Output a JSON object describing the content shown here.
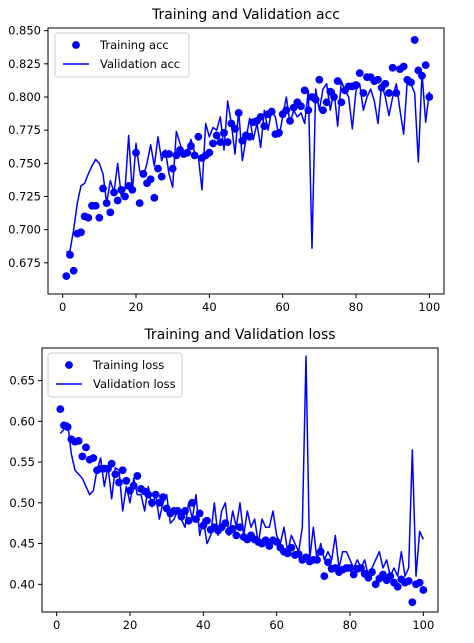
{
  "colors": {
    "series": "#0000ff",
    "frame": "#000000",
    "legend_border": "#cccccc"
  },
  "chart_data": [
    {
      "type": "line",
      "title": "Training and Validation acc",
      "xlabel": "",
      "ylabel": "",
      "xlim": [
        -4,
        104
      ],
      "ylim": [
        0.6515,
        0.852
      ],
      "xticks": [
        0,
        20,
        40,
        60,
        80,
        100
      ],
      "xtick_labels": [
        "0",
        "20",
        "40",
        "60",
        "80",
        "100"
      ],
      "yticks": [
        0.675,
        0.7,
        0.725,
        0.75,
        0.775,
        0.8,
        0.825,
        0.85
      ],
      "ytick_labels": [
        "0.675",
        "0.700",
        "0.725",
        "0.750",
        "0.775",
        "0.800",
        "0.825",
        "0.850"
      ],
      "grid": false,
      "legend_position": "top-left",
      "series": [
        {
          "name": "Training acc",
          "style": "markers",
          "x": [
            1,
            2,
            3,
            4,
            5,
            6,
            7,
            8,
            9,
            10,
            11,
            12,
            13,
            14,
            15,
            16,
            17,
            18,
            19,
            20,
            21,
            22,
            23,
            24,
            25,
            26,
            27,
            28,
            29,
            30,
            31,
            32,
            33,
            34,
            35,
            36,
            37,
            38,
            39,
            40,
            41,
            42,
            43,
            44,
            45,
            46,
            47,
            48,
            49,
            50,
            51,
            52,
            53,
            54,
            55,
            56,
            57,
            58,
            59,
            60,
            61,
            62,
            63,
            64,
            65,
            66,
            67,
            68,
            69,
            70,
            71,
            72,
            73,
            74,
            75,
            76,
            77,
            78,
            79,
            80,
            81,
            82,
            83,
            84,
            85,
            86,
            87,
            88,
            89,
            90,
            91,
            92,
            93,
            94,
            95,
            96,
            97,
            98,
            99,
            100
          ],
          "y": [
            0.665,
            0.681,
            0.669,
            0.697,
            0.698,
            0.71,
            0.709,
            0.718,
            0.718,
            0.709,
            0.731,
            0.72,
            0.713,
            0.728,
            0.722,
            0.73,
            0.725,
            0.733,
            0.73,
            0.758,
            0.72,
            0.742,
            0.735,
            0.738,
            0.724,
            0.746,
            0.74,
            0.757,
            0.757,
            0.746,
            0.756,
            0.76,
            0.757,
            0.758,
            0.763,
            0.756,
            0.77,
            0.754,
            0.756,
            0.758,
            0.765,
            0.771,
            0.766,
            0.773,
            0.766,
            0.78,
            0.776,
            0.788,
            0.767,
            0.771,
            0.77,
            0.781,
            0.782,
            0.785,
            0.778,
            0.787,
            0.789,
            0.772,
            0.773,
            0.787,
            0.79,
            0.782,
            0.792,
            0.796,
            0.793,
            0.805,
            0.79,
            0.8,
            0.798,
            0.813,
            0.79,
            0.796,
            0.804,
            0.8,
            0.812,
            0.796,
            0.805,
            0.808,
            0.808,
            0.809,
            0.818,
            0.803,
            0.815,
            0.815,
            0.812,
            0.813,
            0.807,
            0.81,
            0.803,
            0.822,
            0.803,
            0.821,
            0.823,
            0.813,
            0.811,
            0.843,
            0.82,
            0.816,
            0.824,
            0.8
          ]
        },
        {
          "name": "Validation acc",
          "style": "line",
          "x": [
            1,
            2,
            3,
            4,
            5,
            6,
            7,
            8,
            9,
            10,
            11,
            12,
            13,
            14,
            15,
            16,
            17,
            18,
            19,
            20,
            21,
            22,
            23,
            24,
            25,
            26,
            27,
            28,
            29,
            30,
            31,
            32,
            33,
            34,
            35,
            36,
            37,
            38,
            39,
            40,
            41,
            42,
            43,
            44,
            45,
            46,
            47,
            48,
            49,
            50,
            51,
            52,
            53,
            54,
            55,
            56,
            57,
            58,
            59,
            60,
            61,
            62,
            63,
            64,
            65,
            66,
            67,
            68,
            69,
            70,
            71,
            72,
            73,
            74,
            75,
            76,
            77,
            78,
            79,
            80,
            81,
            82,
            83,
            84,
            85,
            86,
            87,
            88,
            89,
            90,
            91,
            92,
            93,
            94,
            95,
            96,
            97,
            98,
            99,
            100
          ],
          "y": [
            0.683,
            0.684,
            0.7,
            0.72,
            0.733,
            0.735,
            0.742,
            0.748,
            0.753,
            0.75,
            0.742,
            0.72,
            0.737,
            0.728,
            0.75,
            0.725,
            0.73,
            0.771,
            0.728,
            0.765,
            0.744,
            0.74,
            0.75,
            0.764,
            0.748,
            0.77,
            0.752,
            0.76,
            0.742,
            0.732,
            0.774,
            0.765,
            0.756,
            0.76,
            0.768,
            0.758,
            0.755,
            0.73,
            0.78,
            0.77,
            0.777,
            0.775,
            0.785,
            0.76,
            0.797,
            0.78,
            0.757,
            0.79,
            0.752,
            0.768,
            0.784,
            0.768,
            0.78,
            0.762,
            0.79,
            0.775,
            0.79,
            0.785,
            0.77,
            0.785,
            0.8,
            0.78,
            0.79,
            0.785,
            0.788,
            0.78,
            0.805,
            0.686,
            0.806,
            0.79,
            0.806,
            0.81,
            0.79,
            0.805,
            0.778,
            0.812,
            0.805,
            0.8,
            0.776,
            0.805,
            0.81,
            0.79,
            0.8,
            0.806,
            0.797,
            0.78,
            0.81,
            0.8,
            0.786,
            0.8,
            0.81,
            0.79,
            0.772,
            0.813,
            0.81,
            0.803,
            0.751,
            0.818,
            0.781,
            0.804
          ]
        }
      ]
    },
    {
      "type": "line",
      "title": "Training and Validation loss",
      "xlabel": "",
      "ylabel": "",
      "xlim": [
        -4,
        104
      ],
      "ylim": [
        0.366,
        0.69
      ],
      "xticks": [
        0,
        20,
        40,
        60,
        80,
        100
      ],
      "xtick_labels": [
        "0",
        "20",
        "40",
        "60",
        "80",
        "100"
      ],
      "yticks": [
        0.4,
        0.45,
        0.5,
        0.55,
        0.6,
        0.65
      ],
      "ytick_labels": [
        "0.40",
        "0.45",
        "0.50",
        "0.55",
        "0.60",
        "0.65"
      ],
      "grid": false,
      "legend_position": "top-left",
      "series": [
        {
          "name": "Training loss",
          "style": "markers",
          "x": [
            1,
            2,
            3,
            4,
            5,
            6,
            7,
            8,
            9,
            10,
            11,
            12,
            13,
            14,
            15,
            16,
            17,
            18,
            19,
            20,
            21,
            22,
            23,
            24,
            25,
            26,
            27,
            28,
            29,
            30,
            31,
            32,
            33,
            34,
            35,
            36,
            37,
            38,
            39,
            40,
            41,
            42,
            43,
            44,
            45,
            46,
            47,
            48,
            49,
            50,
            51,
            52,
            53,
            54,
            55,
            56,
            57,
            58,
            59,
            60,
            61,
            62,
            63,
            64,
            65,
            66,
            67,
            68,
            69,
            70,
            71,
            72,
            73,
            74,
            75,
            76,
            77,
            78,
            79,
            80,
            81,
            82,
            83,
            84,
            85,
            86,
            87,
            88,
            89,
            90,
            91,
            92,
            93,
            94,
            95,
            96,
            97,
            98,
            99,
            100
          ],
          "y": [
            0.615,
            0.595,
            0.593,
            0.578,
            0.575,
            0.576,
            0.557,
            0.568,
            0.553,
            0.555,
            0.54,
            0.542,
            0.542,
            0.542,
            0.548,
            0.535,
            0.525,
            0.54,
            0.527,
            0.515,
            0.521,
            0.533,
            0.517,
            0.514,
            0.51,
            0.5,
            0.51,
            0.5,
            0.507,
            0.493,
            0.487,
            0.49,
            0.49,
            0.483,
            0.49,
            0.478,
            0.5,
            0.48,
            0.487,
            0.472,
            0.478,
            0.467,
            0.47,
            0.466,
            0.47,
            0.475,
            0.465,
            0.468,
            0.46,
            0.47,
            0.458,
            0.455,
            0.46,
            0.455,
            0.452,
            0.45,
            0.454,
            0.447,
            0.454,
            0.452,
            0.445,
            0.44,
            0.438,
            0.445,
            0.436,
            0.437,
            0.43,
            0.433,
            0.428,
            0.43,
            0.43,
            0.44,
            0.41,
            0.427,
            0.419,
            0.42,
            0.415,
            0.418,
            0.42,
            0.42,
            0.412,
            0.419,
            0.42,
            0.413,
            0.408,
            0.415,
            0.4,
            0.407,
            0.412,
            0.405,
            0.41,
            0.402,
            0.397,
            0.406,
            0.402,
            0.404,
            0.378,
            0.4,
            0.402,
            0.393
          ]
        },
        {
          "name": "Validation loss",
          "style": "line",
          "x": [
            1,
            2,
            3,
            4,
            5,
            6,
            7,
            8,
            9,
            10,
            11,
            12,
            13,
            14,
            15,
            16,
            17,
            18,
            19,
            20,
            21,
            22,
            23,
            24,
            25,
            26,
            27,
            28,
            29,
            30,
            31,
            32,
            33,
            34,
            35,
            36,
            37,
            38,
            39,
            40,
            41,
            42,
            43,
            44,
            45,
            46,
            47,
            48,
            49,
            50,
            51,
            52,
            53,
            54,
            55,
            56,
            57,
            58,
            59,
            60,
            61,
            62,
            63,
            64,
            65,
            66,
            67,
            68,
            69,
            70,
            71,
            72,
            73,
            74,
            75,
            76,
            77,
            78,
            79,
            80,
            81,
            82,
            83,
            84,
            85,
            86,
            87,
            88,
            89,
            90,
            91,
            92,
            93,
            94,
            95,
            96,
            97,
            98,
            99,
            100
          ],
          "y": [
            0.585,
            0.59,
            0.598,
            0.56,
            0.54,
            0.535,
            0.53,
            0.52,
            0.51,
            0.515,
            0.54,
            0.555,
            0.52,
            0.545,
            0.505,
            0.543,
            0.54,
            0.49,
            0.52,
            0.5,
            0.53,
            0.51,
            0.51,
            0.49,
            0.52,
            0.495,
            0.51,
            0.48,
            0.5,
            0.51,
            0.475,
            0.48,
            0.49,
            0.48,
            0.47,
            0.5,
            0.48,
            0.51,
            0.46,
            0.48,
            0.45,
            0.46,
            0.5,
            0.46,
            0.49,
            0.5,
            0.46,
            0.49,
            0.47,
            0.5,
            0.46,
            0.49,
            0.47,
            0.48,
            0.45,
            0.48,
            0.47,
            0.47,
            0.49,
            0.46,
            0.45,
            0.47,
            0.44,
            0.46,
            0.45,
            0.44,
            0.47,
            0.68,
            0.43,
            0.47,
            0.43,
            0.45,
            0.43,
            0.44,
            0.43,
            0.46,
            0.42,
            0.44,
            0.44,
            0.43,
            0.42,
            0.43,
            0.42,
            0.43,
            0.41,
            0.42,
            0.43,
            0.44,
            0.42,
            0.43,
            0.41,
            0.42,
            0.41,
            0.44,
            0.41,
            0.42,
            0.565,
            0.41,
            0.465,
            0.455
          ]
        }
      ]
    }
  ]
}
